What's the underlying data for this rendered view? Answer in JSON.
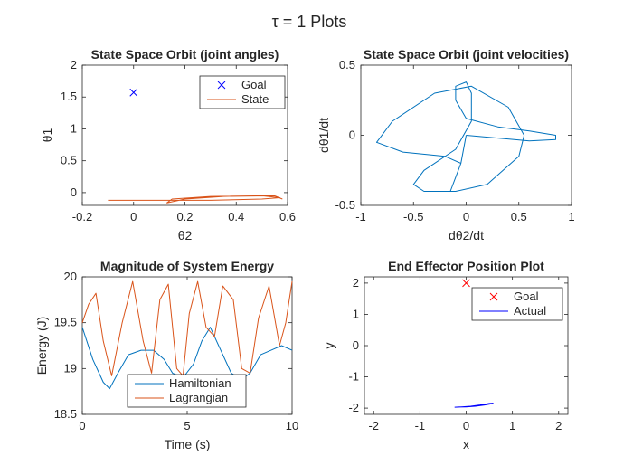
{
  "figure": {
    "suptitle": "τ = 1 Plots"
  },
  "chart_data": [
    {
      "type": "line",
      "title": "State Space Orbit (joint angles)",
      "xlabel": "θ2",
      "ylabel": "θ1",
      "xlim": [
        -0.2,
        0.6
      ],
      "ylim": [
        -0.2,
        2
      ],
      "xticks": [
        "-0.2",
        "0",
        "0.2",
        "0.4",
        "0.6"
      ],
      "yticks": [
        "0",
        "0.5",
        "1",
        "1.5",
        "2"
      ],
      "legend": {
        "position": "top-right",
        "entries": [
          "Goal",
          "State"
        ]
      },
      "series": [
        {
          "name": "Goal",
          "color": "#0000ff",
          "marker": "x",
          "x": [
            0
          ],
          "y": [
            1.5708
          ]
        },
        {
          "name": "State",
          "color": "#d95319",
          "style": "loops",
          "x": [
            -0.1,
            0.12,
            0.3,
            0.5,
            0.57,
            0.5,
            0.3,
            0.15,
            0.13,
            0.2,
            0.35,
            0.55,
            0.58
          ],
          "y": [
            -0.12,
            -0.12,
            -0.12,
            -0.1,
            -0.08,
            -0.05,
            -0.06,
            -0.1,
            -0.16,
            -0.1,
            -0.06,
            -0.05,
            -0.1
          ]
        }
      ]
    },
    {
      "type": "line",
      "title": "State Space Orbit (joint velocities)",
      "xlabel": "dθ2/dt",
      "ylabel": "dθ1/dt",
      "xlim": [
        -1,
        1
      ],
      "ylim": [
        -0.5,
        0.5
      ],
      "xticks": [
        "-1",
        "-0.5",
        "0",
        "0.5",
        "1"
      ],
      "yticks": [
        "-0.5",
        "0",
        "0.5"
      ],
      "series": [
        {
          "name": "",
          "color": "#0072bd",
          "style": "closed-orbit",
          "x": [
            0.0,
            0.3,
            0.6,
            0.85,
            0.85,
            0.6,
            0.3,
            0.0,
            -0.1,
            -0.1,
            0.0,
            0.05,
            0.05,
            -0.1,
            -0.4,
            -0.5,
            -0.4,
            -0.1,
            0.2,
            0.5,
            0.55,
            0.4,
            0.05,
            -0.3,
            -0.7,
            -0.85,
            -0.6,
            -0.2,
            -0.05,
            -0.1,
            -0.15,
            -0.05,
            0.0
          ],
          "y": [
            0.0,
            -0.02,
            -0.04,
            -0.03,
            0.0,
            0.03,
            0.06,
            0.12,
            0.25,
            0.35,
            0.38,
            0.3,
            0.1,
            -0.1,
            -0.25,
            -0.35,
            -0.4,
            -0.4,
            -0.35,
            -0.15,
            0.0,
            0.2,
            0.35,
            0.3,
            0.1,
            -0.05,
            -0.12,
            -0.15,
            -0.2,
            -0.3,
            -0.4,
            -0.2,
            0.0
          ]
        }
      ]
    },
    {
      "type": "line",
      "title": "Magnitude of System Energy",
      "xlabel": "Time (s)",
      "ylabel": "Energy (J)",
      "xlim": [
        0,
        10
      ],
      "ylim": [
        18.5,
        20
      ],
      "xticks": [
        "0",
        "5",
        "10"
      ],
      "yticks": [
        "18.5",
        "19",
        "19.5",
        "20"
      ],
      "legend": {
        "position": "bottom-center",
        "entries": [
          "Hamiltonian",
          "Lagrangian"
        ]
      },
      "series": [
        {
          "name": "Hamiltonian",
          "color": "#0072bd",
          "x": [
            0,
            0.5,
            1,
            1.3,
            1.7,
            2.2,
            2.8,
            3.4,
            3.9,
            4.3,
            4.8,
            5.3,
            5.7,
            6.1,
            6.6,
            7.1,
            7.6,
            8.0,
            8.5,
            9.0,
            9.5,
            10
          ],
          "y": [
            19.45,
            19.1,
            18.85,
            18.78,
            18.95,
            19.15,
            19.2,
            19.2,
            19.1,
            18.95,
            18.9,
            19.05,
            19.3,
            19.45,
            19.2,
            18.95,
            18.88,
            18.95,
            19.15,
            19.2,
            19.25,
            19.2
          ]
        },
        {
          "name": "Lagrangian",
          "color": "#d95319",
          "x": [
            0,
            0.3,
            0.65,
            1.0,
            1.4,
            1.9,
            2.4,
            2.9,
            3.3,
            3.7,
            4.1,
            4.5,
            4.8,
            5.1,
            5.5,
            5.9,
            6.3,
            6.7,
            7.2,
            7.6,
            8.0,
            8.4,
            8.9,
            9.4,
            9.7,
            10
          ],
          "y": [
            19.5,
            19.7,
            19.82,
            19.3,
            18.92,
            19.5,
            19.95,
            19.3,
            18.95,
            19.75,
            19.92,
            19.0,
            18.92,
            19.6,
            19.95,
            19.45,
            19.35,
            19.9,
            19.75,
            19.0,
            18.95,
            19.55,
            19.9,
            19.25,
            19.5,
            19.95
          ]
        }
      ]
    },
    {
      "type": "line",
      "title": "End Effector Position Plot",
      "xlabel": "x",
      "ylabel": "y",
      "xlim": [
        -2.2,
        2.2
      ],
      "ylim": [
        -2.2,
        2.2
      ],
      "xticks": [
        "-2",
        "-1",
        "0",
        "1",
        "2"
      ],
      "yticks": [
        "-2",
        "-1",
        "0",
        "1",
        "2"
      ],
      "legend": {
        "position": "top-right",
        "entries": [
          "Goal",
          "Actual"
        ]
      },
      "series": [
        {
          "name": "Goal",
          "color": "#ff0000",
          "marker": "x",
          "x": [
            0
          ],
          "y": [
            2
          ]
        },
        {
          "name": "Actual",
          "color": "#0000ff",
          "x": [
            -0.25,
            0.0,
            0.2,
            0.4,
            0.55,
            0.58,
            0.5,
            0.3,
            0.1,
            -0.1,
            -0.25
          ],
          "y": [
            -1.97,
            -1.96,
            -1.94,
            -1.9,
            -1.86,
            -1.84,
            -1.85,
            -1.9,
            -1.94,
            -1.96,
            -1.97
          ]
        }
      ]
    }
  ]
}
